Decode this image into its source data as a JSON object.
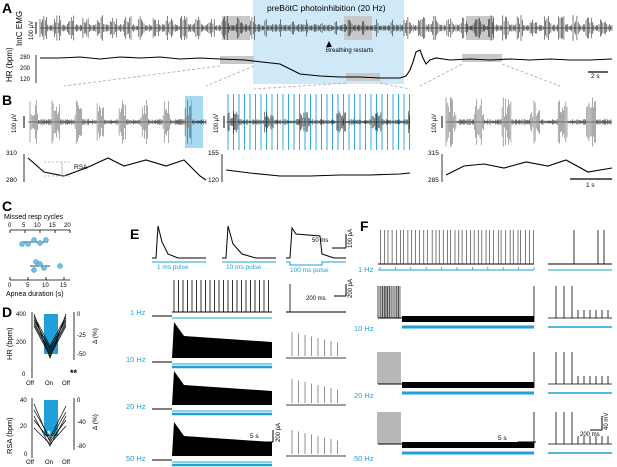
{
  "panels": {
    "A": "A",
    "B": "B",
    "C": "C",
    "D": "D",
    "E": "E",
    "F": "F"
  },
  "colors": {
    "accent": "#1ea1d8",
    "shade": "#cfe9f8",
    "trace": "#000000",
    "gray": "#9a9a9a"
  },
  "panelA": {
    "stim_label": "preBötC photoinhibition (20 Hz)",
    "intc_label": "IntC EMG",
    "intc_scale": "100 µV",
    "hr_label": "HR (bpm)",
    "hr_ticks": [
      "280",
      "200",
      "120"
    ],
    "breathing_restarts": "Breathing restarts",
    "time_scale": "2 s"
  },
  "panelB": {
    "scale_1": "100 µV",
    "scale_2": "100 µV",
    "scale_3": "100 µV",
    "left_ticks": [
      "310",
      "280"
    ],
    "mid_ticks": [
      "155",
      "120"
    ],
    "right_ticks": [
      "315",
      "285"
    ],
    "rsa_label": "RSA",
    "time_scale": "1 s"
  },
  "panelC": {
    "top_axis_title": "Missed resp cycles",
    "top_ticks": [
      "0",
      "5",
      "10",
      "15",
      "20"
    ],
    "bottom_axis_title": "Apnea duration (s)",
    "bottom_ticks": [
      "0",
      "5",
      "10",
      "15"
    ]
  },
  "panelD": {
    "hr_label": "HR (bpm)",
    "hr_ticks": [
      "400",
      "200",
      "0"
    ],
    "hr_right_ticks": [
      "0",
      "-25",
      "-50"
    ],
    "rsa_label": "RSA (bpm)",
    "rsa_ticks": [
      "40",
      "20",
      "0"
    ],
    "rsa_right_ticks": [
      "0",
      "-40",
      "-80"
    ],
    "delta_label": "Δ (%)",
    "x_labels": [
      "Off",
      "On",
      "Off"
    ],
    "sig_hr": "**",
    "sig_rsa": "*"
  },
  "panelE": {
    "pulses": [
      "1 ms pulse",
      "10 ms pulse",
      "100 ms pulse"
    ],
    "rows": [
      "1 Hz",
      "10 Hz",
      "20 Hz",
      "50 Hz"
    ],
    "scale_top_y": "100 pA",
    "scale_top_x": "50 ms",
    "scale_mid_y": "200 pA",
    "scale_mid_x": "200 ms",
    "scale_bot_x": "5 s",
    "scale_bot_y": "200 pA"
  },
  "panelF": {
    "rows": [
      "1 Hz",
      "10 Hz",
      "20 Hz",
      "50 Hz"
    ],
    "scale_x": "5 s",
    "scale_y": "40 mV",
    "scale_zoom_x": "200 ms"
  }
}
